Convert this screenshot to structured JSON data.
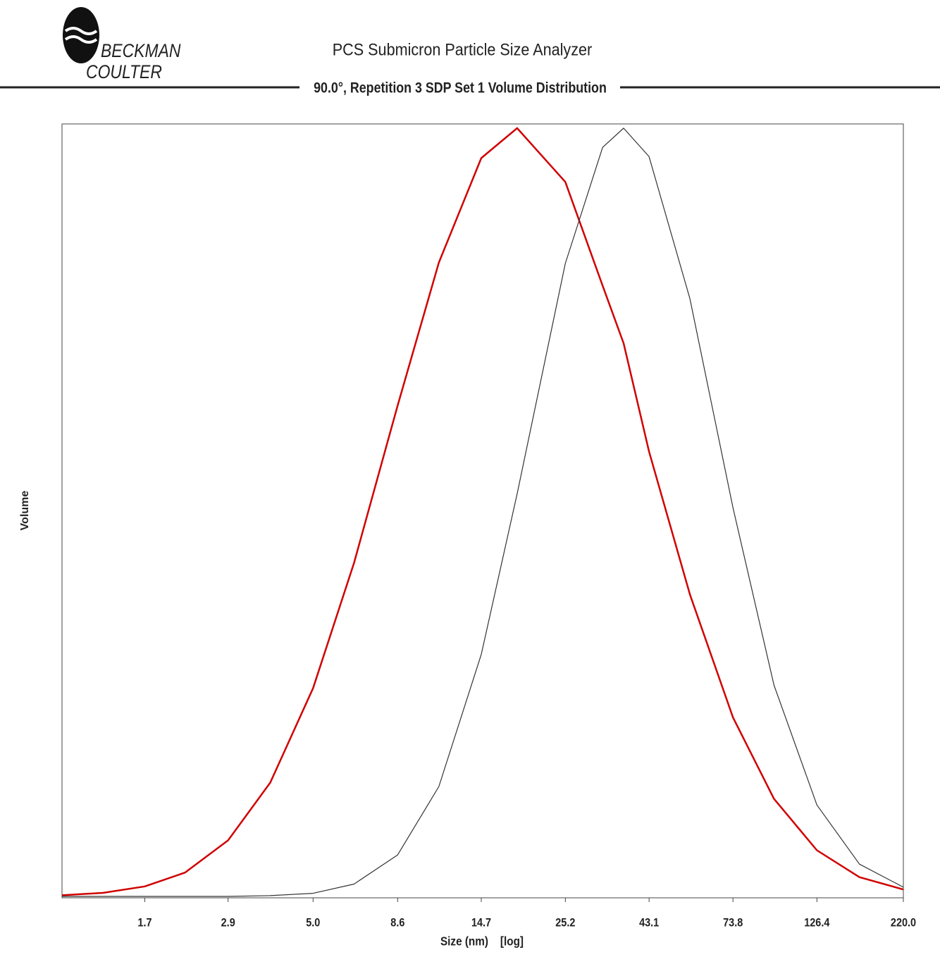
{
  "logo": {
    "line1": "BECKMAN",
    "line2": "COULTER"
  },
  "chart_data": {
    "type": "line",
    "title": "PCS Submicron Particle Size Analyzer",
    "subtitle": "90.0°, Repetition 3 SDP Set 1 Volume Distribution",
    "x_label": "Size (nm)    [log]",
    "y_label": "Volume",
    "x_scale": "log",
    "xlim": [
      1,
      220
    ],
    "ylim": [
      0,
      100
    ],
    "xticks": [
      1.7,
      2.9,
      {
        "value": 5,
        "label": "5.0"
      },
      8.6,
      14.7,
      25.2,
      43.1,
      73.8,
      126.4,
      {
        "value": 220,
        "label": "220.0"
      }
    ],
    "x": [
      1,
      1.3,
      1.7,
      2.2,
      2.9,
      3.8,
      5.0,
      6.5,
      8.6,
      11.2,
      14.7,
      18.5,
      25.2,
      32,
      36.6,
      43.1,
      56,
      73.8,
      96,
      126.4,
      166,
      220
    ],
    "series": [
      {
        "color": "#d00000",
        "width": 2.5,
        "values": [
          0.15,
          0.46,
          1.3,
          3.1,
          7.3,
          14.8,
          27.1,
          43.4,
          63.9,
          82.5,
          96.1,
          100,
          93.0,
          79.5,
          72,
          57.9,
          39.3,
          23.3,
          12.7,
          6.0,
          2.5,
          0.9
        ]
      },
      {
        "color": "#333333",
        "width": 1.2,
        "values": [
          0,
          0,
          0,
          0,
          0,
          0.1,
          0.4,
          1.6,
          5.4,
          14.3,
          31.5,
          52.4,
          82.4,
          97.5,
          100,
          96.3,
          77.8,
          50.6,
          27.5,
          11.9,
          4.2,
          1.2
        ]
      }
    ]
  }
}
